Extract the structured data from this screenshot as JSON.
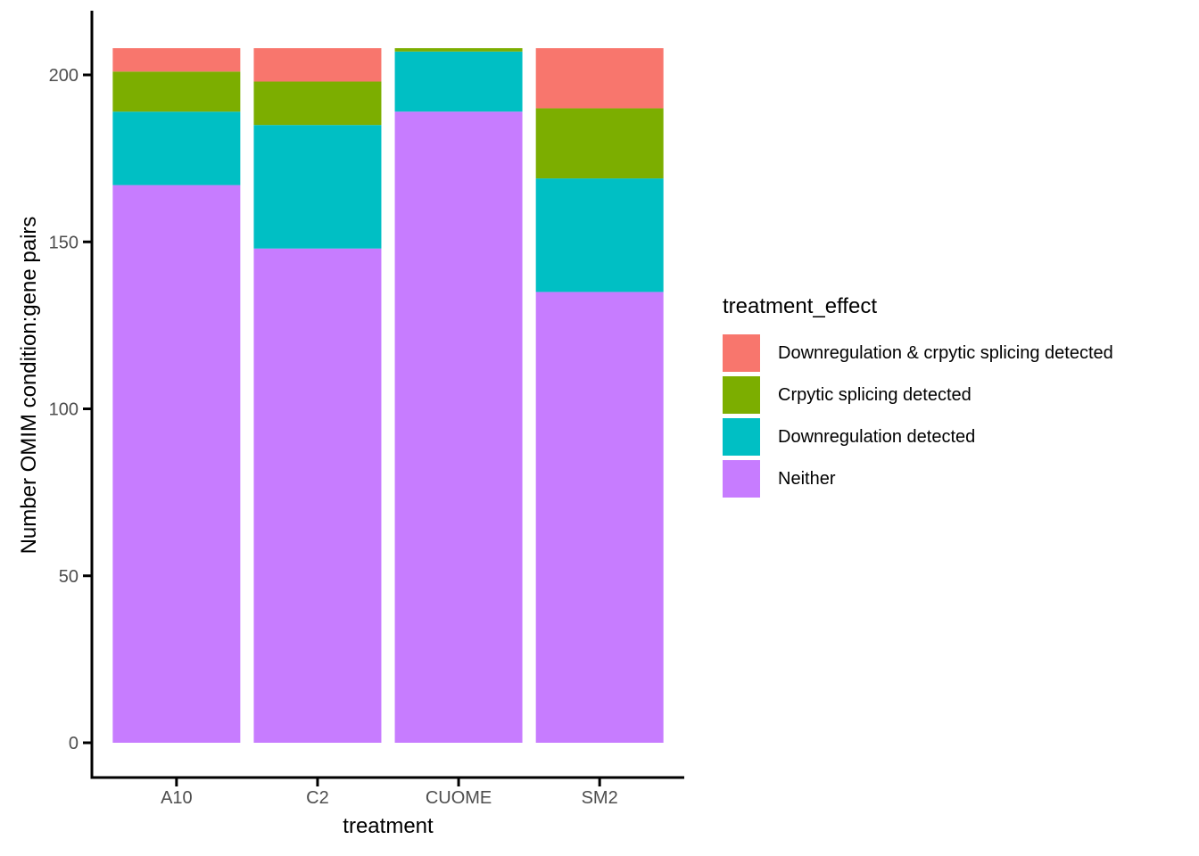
{
  "chart_data": {
    "type": "bar",
    "stacked": true,
    "title": "",
    "xlabel": "treatment",
    "ylabel": "Number OMIM condition:gene pairs",
    "categories": [
      "A10",
      "C2",
      "CUOME",
      "SM2"
    ],
    "series": [
      {
        "name": "Neither",
        "color": "#C77CFF",
        "values": [
          167,
          148,
          189,
          135
        ]
      },
      {
        "name": "Downregulation detected",
        "color": "#00BFC4",
        "values": [
          22,
          37,
          18,
          34
        ]
      },
      {
        "name": "Crpytic splicing detected",
        "color": "#7CAE00",
        "values": [
          12,
          13,
          1,
          21
        ]
      },
      {
        "name": "Downregulation & crpytic splicing detected",
        "color": "#F8766D",
        "values": [
          7,
          10,
          0,
          18
        ]
      }
    ],
    "stack_order_bottom_to_top": [
      "Neither",
      "Downregulation detected",
      "Crpytic splicing detected",
      "Downregulation & crpytic splicing detected"
    ],
    "bar_totals": [
      208,
      208,
      208,
      208
    ],
    "y_ticks": [
      0,
      50,
      100,
      150,
      200
    ],
    "ylim": [
      0,
      219
    ],
    "grid": false,
    "legend": {
      "title": "treatment_effect",
      "position": "right",
      "entries": [
        {
          "label": "Downregulation & crpytic splicing detected",
          "color": "#F8766D"
        },
        {
          "label": "Crpytic splicing detected",
          "color": "#7CAE00"
        },
        {
          "label": "Downregulation detected",
          "color": "#00BFC4"
        },
        {
          "label": "Neither",
          "color": "#C77CFF"
        }
      ]
    },
    "colors": {
      "axis_text": "#4D4D4D",
      "axis_title": "#000000",
      "axis_line": "#000000",
      "background": "#FFFFFF"
    }
  }
}
